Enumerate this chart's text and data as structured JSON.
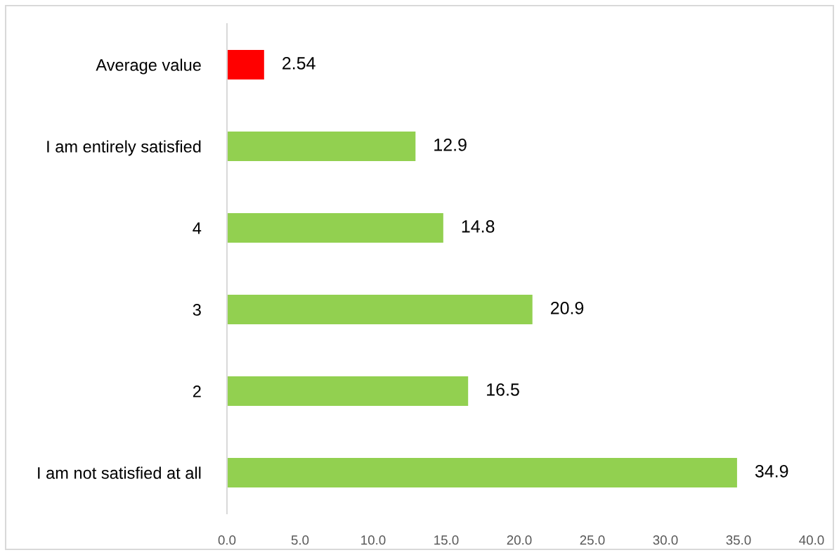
{
  "chart_data": {
    "type": "bar",
    "orientation": "horizontal",
    "categories": [
      "Average value",
      "I am entirely satisfied",
      "4",
      "3",
      "2",
      "I am not satisfied at all"
    ],
    "values": [
      2.54,
      12.9,
      14.8,
      20.9,
      16.5,
      34.9
    ],
    "colors": [
      "#ff0000",
      "#92d050",
      "#92d050",
      "#92d050",
      "#92d050",
      "#92d050"
    ],
    "xlim": [
      0,
      40
    ],
    "xticks": [
      {
        "value": 0,
        "label": "0.0"
      },
      {
        "value": 5,
        "label": "5.0"
      },
      {
        "value": 10,
        "label": "10.0"
      },
      {
        "value": 15,
        "label": "15.0"
      },
      {
        "value": 20,
        "label": "20.0"
      },
      {
        "value": 25,
        "label": "25.0"
      },
      {
        "value": 30,
        "label": "30.0"
      },
      {
        "value": 35,
        "label": "35.0"
      },
      {
        "value": 40,
        "label": "40.0"
      }
    ],
    "data_labels": true,
    "grid": false
  }
}
